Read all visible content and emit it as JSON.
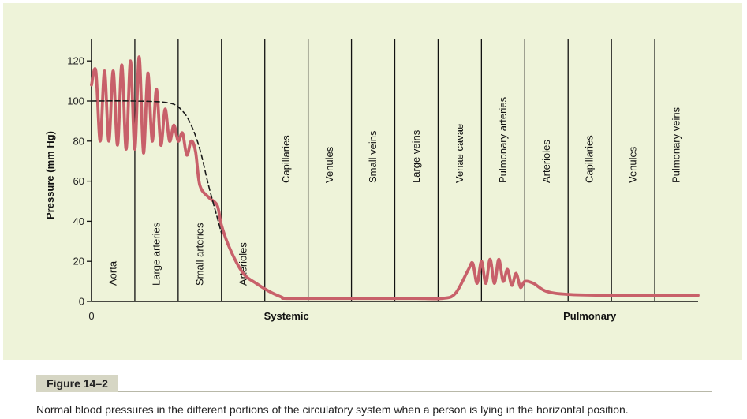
{
  "chart_data": {
    "type": "line",
    "ylabel": "Pressure (mm Hg)",
    "ylim": [
      0,
      125
    ],
    "yticks": [
      0,
      20,
      40,
      60,
      80,
      100,
      120
    ],
    "x_origin_label": "0",
    "regions": [
      "Aorta",
      "Large arteries",
      "Small arteries",
      "Arterioles",
      "Capillaries",
      "Venules",
      "Small veins",
      "Large veins",
      "Venae cavae",
      "Pulmonary arteries",
      "Arterioles",
      "Capillaries",
      "Venules",
      "Pulmonary veins"
    ],
    "groups": [
      {
        "label": "Systemic",
        "start_region": 0,
        "end_region": 8
      },
      {
        "label": "Pulmonary",
        "start_region": 9,
        "end_region": 13
      }
    ],
    "series": [
      {
        "kind": "pulsatile",
        "color": "#c8606a",
        "points": [
          [
            0.0,
            108
          ],
          [
            0.2,
            115
          ],
          [
            0.4,
            80
          ],
          [
            0.6,
            115
          ],
          [
            0.8,
            80
          ],
          [
            1.0,
            115
          ],
          [
            1.2,
            78
          ],
          [
            1.4,
            118
          ],
          [
            1.6,
            76
          ],
          [
            1.8,
            120
          ],
          [
            2.0,
            76
          ],
          [
            2.2,
            122
          ],
          [
            2.4,
            74
          ],
          [
            2.6,
            114
          ],
          [
            2.8,
            80
          ],
          [
            3.0,
            106
          ],
          [
            3.2,
            78
          ],
          [
            3.4,
            96
          ],
          [
            3.6,
            80
          ],
          [
            3.8,
            88
          ],
          [
            4.0,
            80
          ],
          [
            4.2,
            84
          ],
          [
            4.4,
            73
          ],
          [
            4.6,
            80
          ],
          [
            4.8,
            75
          ],
          [
            5.0,
            58
          ],
          [
            5.4,
            52
          ],
          [
            5.8,
            48
          ],
          [
            6.0,
            38
          ],
          [
            6.4,
            26
          ],
          [
            7.0,
            14
          ],
          [
            7.6,
            9
          ],
          [
            8.2,
            5
          ],
          [
            8.8,
            2
          ],
          [
            9.0,
            1.5
          ],
          [
            11.0,
            1.5
          ],
          [
            13.0,
            1.5
          ],
          [
            14.0,
            1.5
          ],
          [
            15.0,
            1.5
          ],
          [
            16.2,
            1.5
          ],
          [
            16.8,
            4
          ],
          [
            17.4,
            16
          ],
          [
            17.6,
            19
          ],
          [
            17.8,
            9
          ],
          [
            18.0,
            20
          ],
          [
            18.2,
            9
          ],
          [
            18.4,
            21
          ],
          [
            18.6,
            9
          ],
          [
            18.8,
            21
          ],
          [
            19.0,
            10
          ],
          [
            19.2,
            16
          ],
          [
            19.4,
            8
          ],
          [
            19.6,
            14
          ],
          [
            19.8,
            7
          ],
          [
            20.0,
            10
          ],
          [
            20.4,
            9
          ],
          [
            21.0,
            5
          ],
          [
            22.0,
            3.5
          ],
          [
            24.0,
            3
          ],
          [
            26.0,
            3
          ],
          [
            28.0,
            3
          ]
        ]
      },
      {
        "kind": "mean",
        "style": "dashed",
        "color": "#1a1a1a",
        "points": [
          [
            0.0,
            100
          ],
          [
            2.0,
            100
          ],
          [
            3.6,
            99
          ],
          [
            4.2,
            95
          ],
          [
            4.6,
            88
          ],
          [
            5.0,
            76
          ],
          [
            5.4,
            58
          ],
          [
            5.8,
            42
          ],
          [
            6.0,
            34
          ]
        ]
      }
    ]
  },
  "figure": {
    "label": "Figure 14–2",
    "caption": "Normal blood pressures in the different portions of the circulatory system when a person is lying in the horizontal position."
  },
  "colors": {
    "panel_bg": "#eef3d9",
    "curve": "#c8606a",
    "axis": "#111111"
  }
}
